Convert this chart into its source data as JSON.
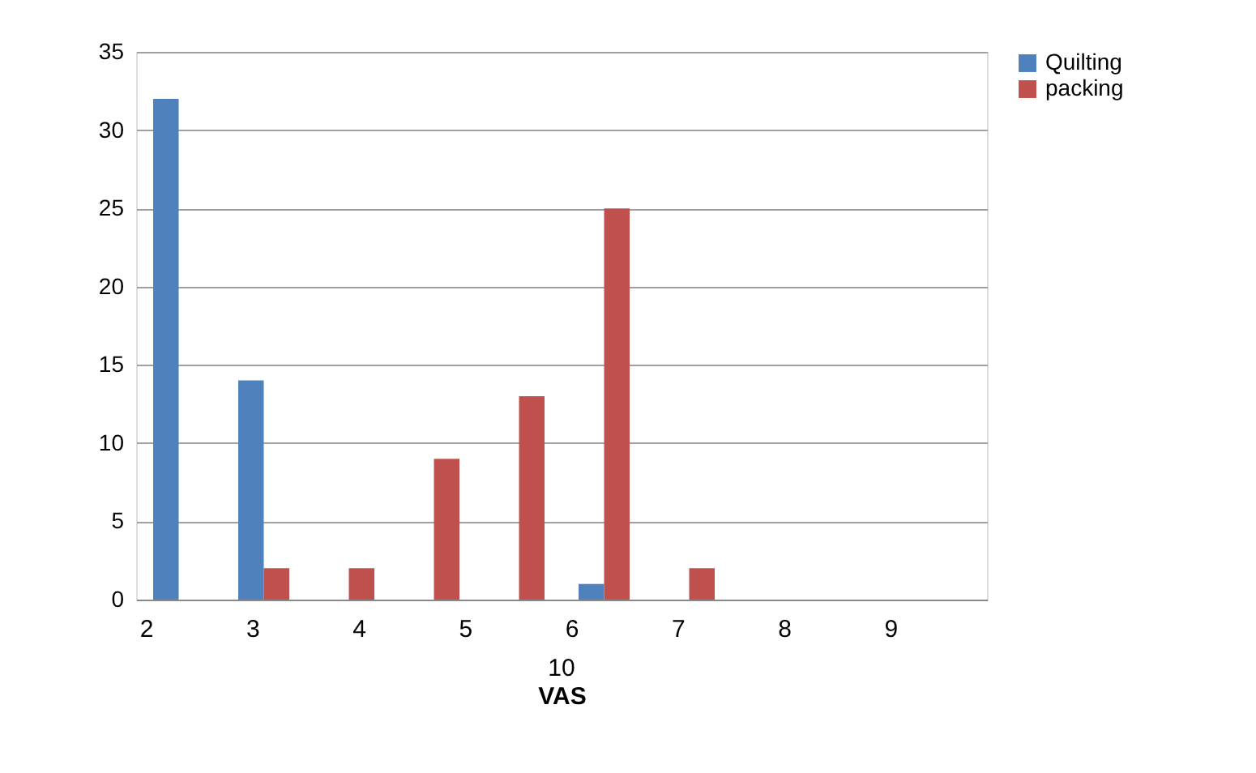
{
  "chart_data": {
    "type": "bar",
    "xlabel": "VAS",
    "categories": [
      null,
      null,
      null,
      null,
      null,
      null,
      null,
      null,
      null,
      null
    ],
    "series": [
      {
        "name": "Quilting",
        "color": "#4f81bd",
        "values": [
          32,
          14,
          0,
          0,
          0,
          1,
          0,
          0,
          0,
          0
        ]
      },
      {
        "name": "packing",
        "color": "#c0504d",
        "values": [
          0,
          2,
          2,
          9,
          13,
          25,
          2,
          0,
          0,
          0
        ]
      }
    ],
    "ylim": [
      0,
      35
    ],
    "yticks": [
      0,
      5,
      10,
      15,
      20,
      25,
      30,
      35
    ],
    "grid": "y",
    "legend": "right",
    "annotations": [
      "2",
      "3",
      "4",
      "5",
      "6",
      "7",
      "8",
      "9",
      "10"
    ]
  }
}
